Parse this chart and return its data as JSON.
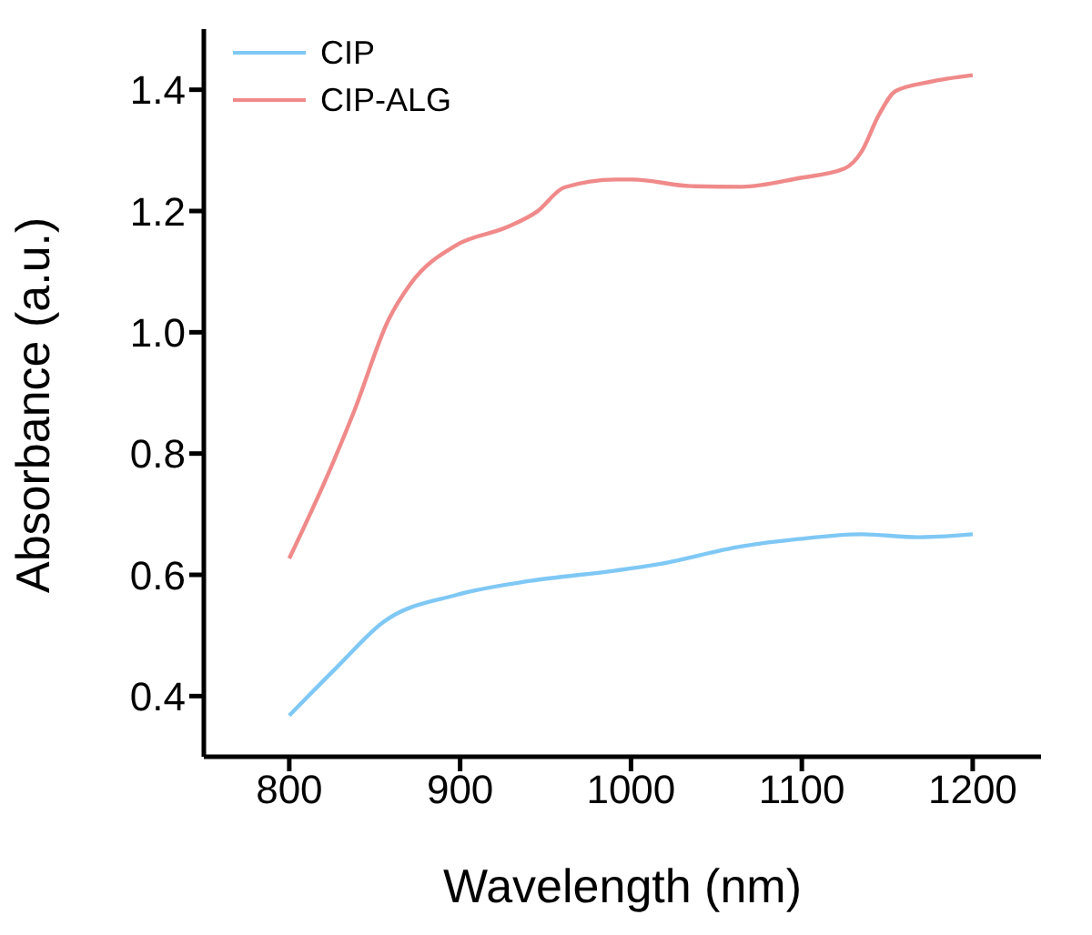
{
  "chart_data": {
    "type": "line",
    "xlabel": "Wavelength (nm)",
    "ylabel": "Absorbance (a.u.)",
    "xlim": [
      750,
      1240
    ],
    "xticks": [
      800,
      900,
      1000,
      1100,
      1200
    ],
    "ylim": [
      0.3,
      1.5
    ],
    "yticks": [
      0.4,
      0.6,
      0.8,
      {
        "value": 1,
        "label": "1.0"
      },
      1.2,
      1.4
    ],
    "grid": false,
    "legend": "top left",
    "marker": "none",
    "line_style": "solid",
    "series": [
      {
        "name": "CIP",
        "color": "#7fc8f5",
        "x": [
          800,
          828,
          855,
          898,
          941,
          991,
          1015,
          1065,
          1098,
          1135,
          1168,
          1200
        ],
        "values": [
          0.368,
          0.448,
          0.522,
          0.567,
          0.59,
          0.607,
          0.617,
          0.647,
          0.659,
          0.667,
          0.662,
          0.667
        ]
      },
      {
        "name": "CIP-ALG",
        "color": "#f08a8a",
        "x": [
          800,
          825,
          838,
          858,
          871,
          898,
          928,
          945,
          961,
          991,
          1001,
          1035,
          1065,
          1098,
          1125,
          1135,
          1145,
          1155,
          1175,
          1200
        ],
        "values": [
          0.627,
          0.781,
          0.87,
          1.02,
          1.08,
          1.144,
          1.174,
          1.199,
          1.239,
          1.252,
          1.252,
          1.241,
          1.24,
          1.254,
          1.27,
          1.298,
          1.358,
          1.398,
          1.413,
          1.424
        ]
      }
    ]
  }
}
